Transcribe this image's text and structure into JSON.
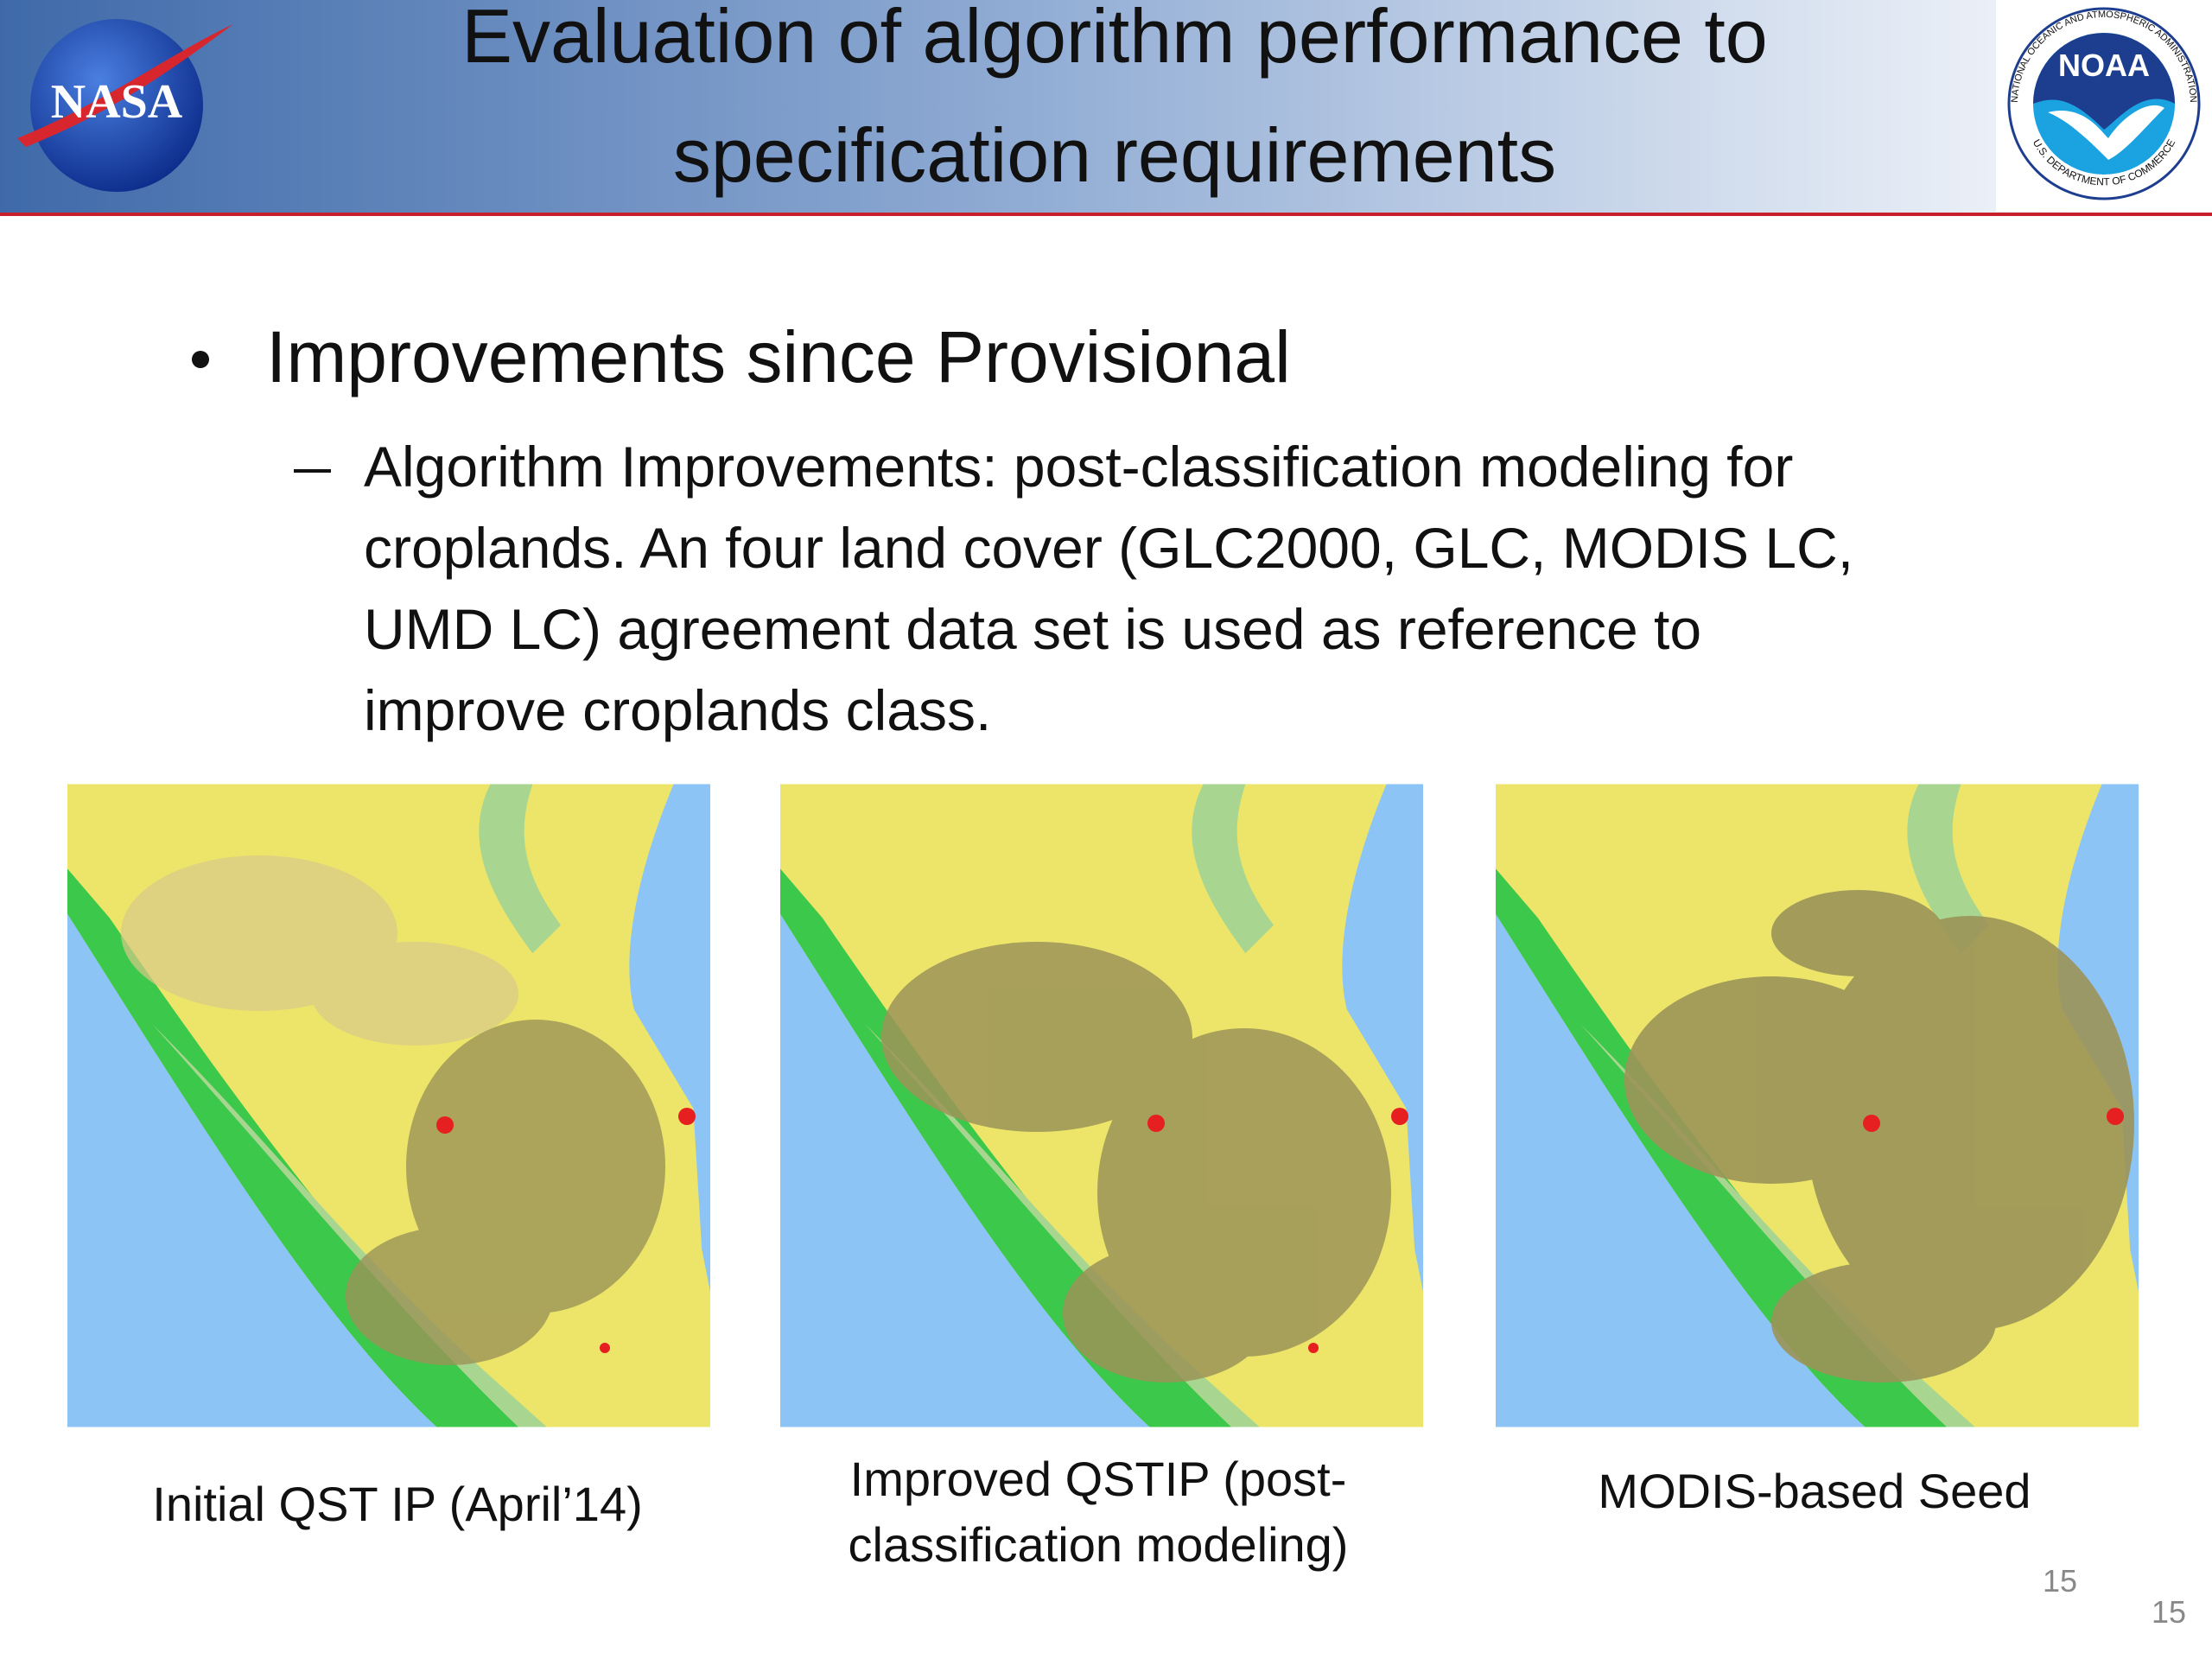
{
  "header": {
    "title_lines": [
      "Evaluation of algorithm performance to",
      "specification requirements"
    ],
    "logos": {
      "nasa": "NASA",
      "noaa": "NOAA",
      "noaa_ring_top": "NATIONAL OCEANIC AND ATMOSPHERIC ADMINISTRATION",
      "noaa_ring_bottom": "U.S. DEPARTMENT OF COMMERCE"
    }
  },
  "body": {
    "bullet": "Improvements since Provisional",
    "sub_bullet_lines": [
      "Algorithm Improvements: post-classification modeling for",
      "croplands. An four land cover (GLC2000, GLC, MODIS LC,",
      "UMD LC) agreement data set  is used as reference to",
      "improve croplands class."
    ]
  },
  "figures": [
    {
      "caption_lines": [
        "Initial QST IP (April’14)"
      ]
    },
    {
      "caption_lines": [
        "Improved QSTIP (post-",
        "classification modeling)"
      ]
    },
    {
      "caption_lines": [
        "MODIS-based Seed"
      ]
    }
  ],
  "page_numbers": [
    "15",
    "15"
  ]
}
